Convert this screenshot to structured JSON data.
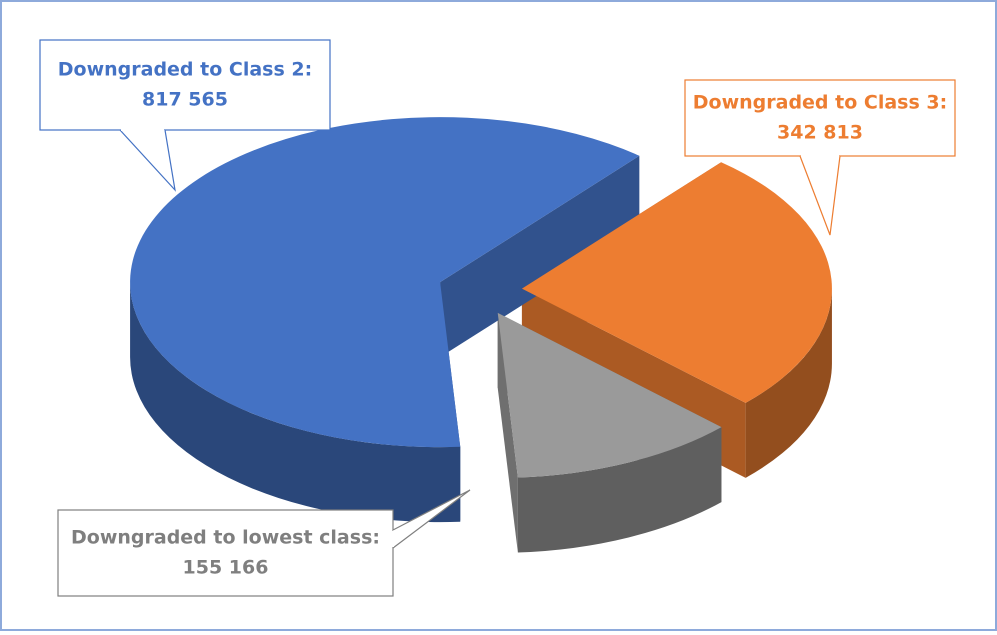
{
  "chart_data": {
    "type": "pie3d",
    "categories": [
      "Downgraded to Class 3:",
      "Downgraded to lowest class:",
      "Downgraded to Class 2:"
    ],
    "values": [
      342813,
      155166,
      817565
    ],
    "value_labels": [
      "342 813",
      "155 166",
      "817 565"
    ],
    "colors": [
      "#ed7d31",
      "#9a9a9a",
      "#4472c4"
    ],
    "label_colors": [
      "#ed7d31",
      "#7f7f7f",
      "#4472c4"
    ]
  }
}
